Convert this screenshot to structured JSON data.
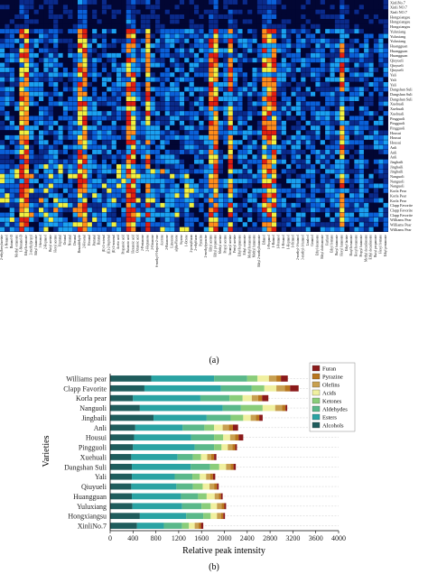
{
  "captions": {
    "a": "(a)",
    "b": "(b)"
  },
  "chart_data": [
    {
      "type": "heatmap",
      "panel": "a",
      "rows": [
        "XinliNo.7",
        "Xinli NO.7",
        "Xinli NO.7",
        "Hongxiangsu",
        "Hongxiangsu",
        "Hongxiangsu",
        "Yuluxiang",
        "Yuluxiang",
        "Yuluxiang",
        "Huangguan",
        "Huangguan",
        "Huangguan",
        "Qiuyueli",
        "Qiuyueli",
        "Qiuyueli",
        "Yali",
        "Yali",
        "Yali",
        "Dangshan Suli",
        "Dangshan Suli",
        "Dangshan Suli",
        "Xuehuali",
        "Xuehuali",
        "Xuehuali",
        "Pingguoli",
        "Pingguoli",
        "Pingguoli",
        "Housui",
        "Housui",
        "Housui",
        "Anli",
        "Anli",
        "Anli",
        "Jingbaili",
        "Jingbaili",
        "Jingbaili",
        "Nanguoli",
        "Nanguoli",
        "Nanguoli",
        "Korla Pear",
        "Korla Pear",
        "Korla Pear",
        "Clapp Favorite",
        "Clapp Favorite",
        "Clapp Favorite",
        "Williams Pear",
        "Williams Pear",
        "Williams Pear"
      ],
      "compounds": [
        "2-ethylhexylacetate",
        "1-Nonanol",
        "Butanol-D",
        "Methyl octanoate",
        "1-Nonanol-D",
        "Ethyl hexanoate",
        "2-methylpropyl",
        "Ethyl butanoate",
        "3-hexenol",
        "2-Heptanol",
        "Butyl acetate",
        "Hexyl acetate",
        "Heptanal",
        "Octanal",
        "Nonanal",
        "Decanal",
        "Benzaldehyde",
        "2-Hexenal",
        "Hexanal",
        "Pentanal",
        "Butanal",
        "(E)-2-octenal",
        "(E)-2-heptenal",
        "(E)-2-nonenal",
        "Acetic acid",
        "Propanoic acid",
        "Butanoic acid",
        "Hexanoic acid",
        "Octanoic acid",
        "2-Pentanone",
        "2-Heptanone",
        "2-Octanone",
        "6-methyl-5-hepten-2-one",
        "Acetone",
        "2-Butanone",
        "Limonene",
        "alpha-Pinene",
        "Styrene",
        "1-Octene",
        "2-pentylfuran",
        "2-ethylfuran",
        "Pyrazine",
        "2-methylpyrazine",
        "Ethyl acetate",
        "Ethyl propanoate",
        "Methyl acetate",
        "Propyl acetate",
        "Isoamyl acetate",
        "Pentyl acetate",
        "Ethyl heptanoate",
        "Ethyl octanoate",
        "Methyl hexanoate",
        "Methyl butanoate",
        "Ethyl 2-methylbutanoate",
        "Ethanol",
        "1-Propanol",
        "1-Butanol",
        "1-Pentanol",
        "1-Hexanol",
        "1-Heptanol",
        "1-Octanol",
        "2-methyl-1-butanol",
        "3-methyl-1-butanol",
        "Linalool",
        "Geraniol",
        "Ethyl decanoate",
        "Ethyl dodecanoate",
        "Furfural",
        "Ethyl formate",
        "Butyl butanoate",
        "Hexyl butanoate",
        "Ethyl lactate",
        "Butyl hexanoate",
        "Hexyl hexanoate",
        "Propyl butanoate",
        "Methyl decadienoate",
        "Ethyl decadienoate",
        "Butyl propanoate",
        "Hexyl formate",
        "Ethyl pentanoate"
      ],
      "colorscale": [
        "#020633",
        "#0a2a8a",
        "#0a60d8",
        "#1aa0f0",
        "#f0f040",
        "#ff8c1a",
        "#e01e10"
      ]
    },
    {
      "type": "bar",
      "orientation": "horizontal",
      "stacked": true,
      "panel": "b",
      "categories": [
        "Williams pear",
        "Clapp Favorite",
        "Korla pear",
        "Nanguoli",
        "Jingbaili",
        "Anli",
        "Housui",
        "Pingguoli",
        "Xuehuali",
        "Dangshan Suli",
        "Yali",
        "Qiuyueli",
        "Huangguan",
        "Yuluxiang",
        "Hongxiangsu",
        "XinliNo.7"
      ],
      "series": [
        {
          "name": "Alcohols",
          "color": "#1f5c5c",
          "values": [
            720,
            600,
            400,
            520,
            760,
            440,
            420,
            400,
            370,
            380,
            380,
            370,
            380,
            390,
            520,
            470
          ]
        },
        {
          "name": "Esters",
          "color": "#2aa3a3",
          "values": [
            1100,
            1340,
            1180,
            1450,
            930,
            830,
            1000,
            1080,
            810,
            1030,
            750,
            790,
            860,
            870,
            810,
            470
          ]
        },
        {
          "name": "Aldehydes",
          "color": "#5ab88a",
          "values": [
            580,
            540,
            510,
            320,
            420,
            380,
            400,
            340,
            270,
            340,
            310,
            290,
            300,
            340,
            300,
            320
          ]
        },
        {
          "name": "Ketones",
          "color": "#8acd7a",
          "values": [
            180,
            220,
            230,
            380,
            220,
            170,
            160,
            130,
            140,
            160,
            130,
            170,
            150,
            160,
            130,
            120
          ]
        },
        {
          "name": "Acids",
          "color": "#f0f0a0",
          "values": [
            200,
            210,
            160,
            220,
            130,
            150,
            120,
            110,
            110,
            120,
            110,
            120,
            140,
            110,
            110,
            100
          ]
        },
        {
          "name": "Olefins",
          "color": "#c8a050",
          "values": [
            130,
            150,
            110,
            120,
            90,
            110,
            90,
            80,
            70,
            80,
            70,
            80,
            70,
            80,
            70,
            70
          ]
        },
        {
          "name": "Pyrazine",
          "color": "#b8761e",
          "values": [
            80,
            90,
            70,
            60,
            60,
            70,
            60,
            50,
            50,
            50,
            50,
            50,
            40,
            50,
            40,
            40
          ]
        },
        {
          "name": "Furan",
          "color": "#8b1a1a",
          "values": [
            120,
            150,
            110,
            30,
            60,
            90,
            80,
            30,
            40,
            40,
            40,
            30,
            30,
            30,
            30,
            40
          ]
        }
      ],
      "xlabel": "Relative peak intensity",
      "ylabel": "Varieties",
      "xlim": [
        0,
        4000
      ],
      "xticks": [
        0,
        400,
        800,
        1200,
        1600,
        2000,
        2400,
        2800,
        3200,
        3600,
        4000
      ],
      "legend_position": "top-right"
    }
  ]
}
